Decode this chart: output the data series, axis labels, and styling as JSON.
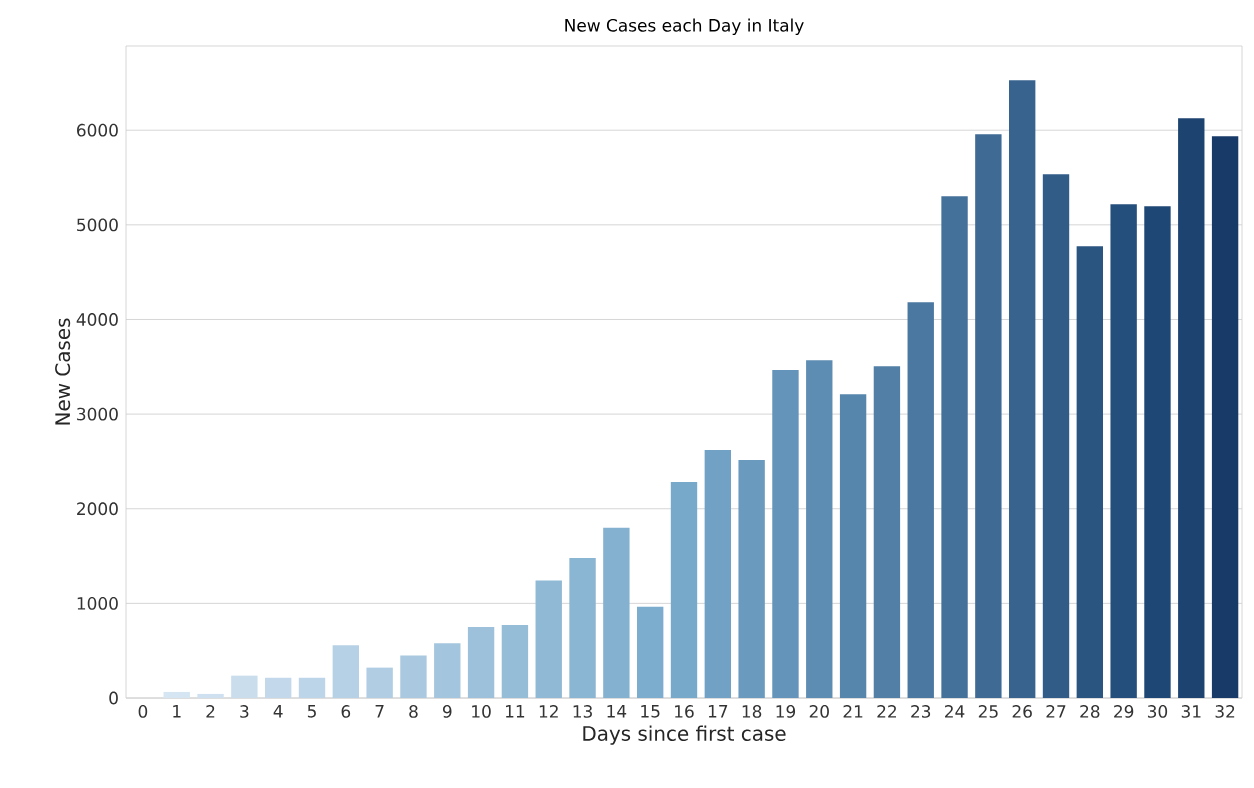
{
  "chart_data": {
    "type": "bar",
    "title": "New Cases each Day in Italy",
    "xlabel": "Days since first case",
    "ylabel": "New Cases",
    "categories": [
      "0",
      "1",
      "2",
      "3",
      "4",
      "5",
      "6",
      "7",
      "8",
      "9",
      "10",
      "11",
      "12",
      "13",
      "14",
      "15",
      "16",
      "17",
      "18",
      "19",
      "20",
      "21",
      "22",
      "23",
      "24",
      "25",
      "26",
      "27",
      "28",
      "29",
      "30",
      "31",
      "32"
    ],
    "values": [
      0,
      64,
      43,
      236,
      214,
      214,
      557,
      321,
      450,
      579,
      750,
      771,
      1243,
      1479,
      1800,
      964,
      2282,
      2620,
      2514,
      3465,
      3570,
      3211,
      3507,
      4183,
      5303,
      5958,
      6528,
      5535,
      4775,
      5218,
      5197,
      6127,
      5937
    ],
    "colors": [
      "#dce9f5",
      "#d6e5f2",
      "#cfe1f0",
      "#c9dded",
      "#c3d9eb",
      "#bcd5e8",
      "#b6d1e5",
      "#b0cde3",
      "#aac9e0",
      "#a3c5dd",
      "#9dc1db",
      "#96bdd8",
      "#90b9d5",
      "#8ab5d3",
      "#84b1d0",
      "#7dadce",
      "#77a9cb",
      "#71a2c5",
      "#6a9bbf",
      "#6494b9",
      "#5d8db2",
      "#5786ac",
      "#517fa6",
      "#4a78a0",
      "#44719a",
      "#3e6a94",
      "#37638e",
      "#315c88",
      "#2b5581",
      "#244e7b",
      "#1e4775",
      "#1d4370",
      "#173a69"
    ],
    "ylim": [
      0,
      6890
    ],
    "yticks": [
      0,
      1000,
      2000,
      3000,
      4000,
      5000,
      6000
    ],
    "grid": "y"
  }
}
